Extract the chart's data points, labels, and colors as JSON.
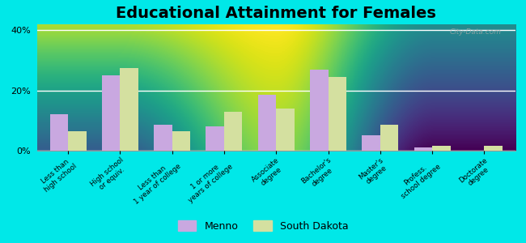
{
  "title": "Educational Attainment for Females",
  "categories": [
    "Less than\nhigh school",
    "High school\nor equiv.",
    "Less than\n1 year of college",
    "1 or more\nyears of college",
    "Associate\ndegree",
    "Bachelor's\ndegree",
    "Master's\ndegree",
    "Profess.\nschool degree",
    "Doctorate\ndegree"
  ],
  "menno": [
    12.0,
    25.0,
    8.5,
    8.0,
    18.5,
    27.0,
    5.0,
    1.0,
    0.0
  ],
  "south_dakota": [
    6.5,
    27.5,
    6.5,
    13.0,
    14.0,
    24.5,
    8.5,
    1.5,
    1.5
  ],
  "menno_color": "#c9a8e0",
  "sd_color": "#d4e0a0",
  "background_top": "#f0f5e0",
  "background_bottom": "#d8eecc",
  "outer_background": "#00e8e8",
  "title_fontsize": 14,
  "ylim": [
    0,
    42
  ],
  "yticks": [
    0,
    20,
    40
  ],
  "ytick_labels": [
    "0%",
    "20%",
    "40%"
  ],
  "watermark": "City-Data.com",
  "legend_menno": "Menno",
  "legend_sd": "South Dakota"
}
